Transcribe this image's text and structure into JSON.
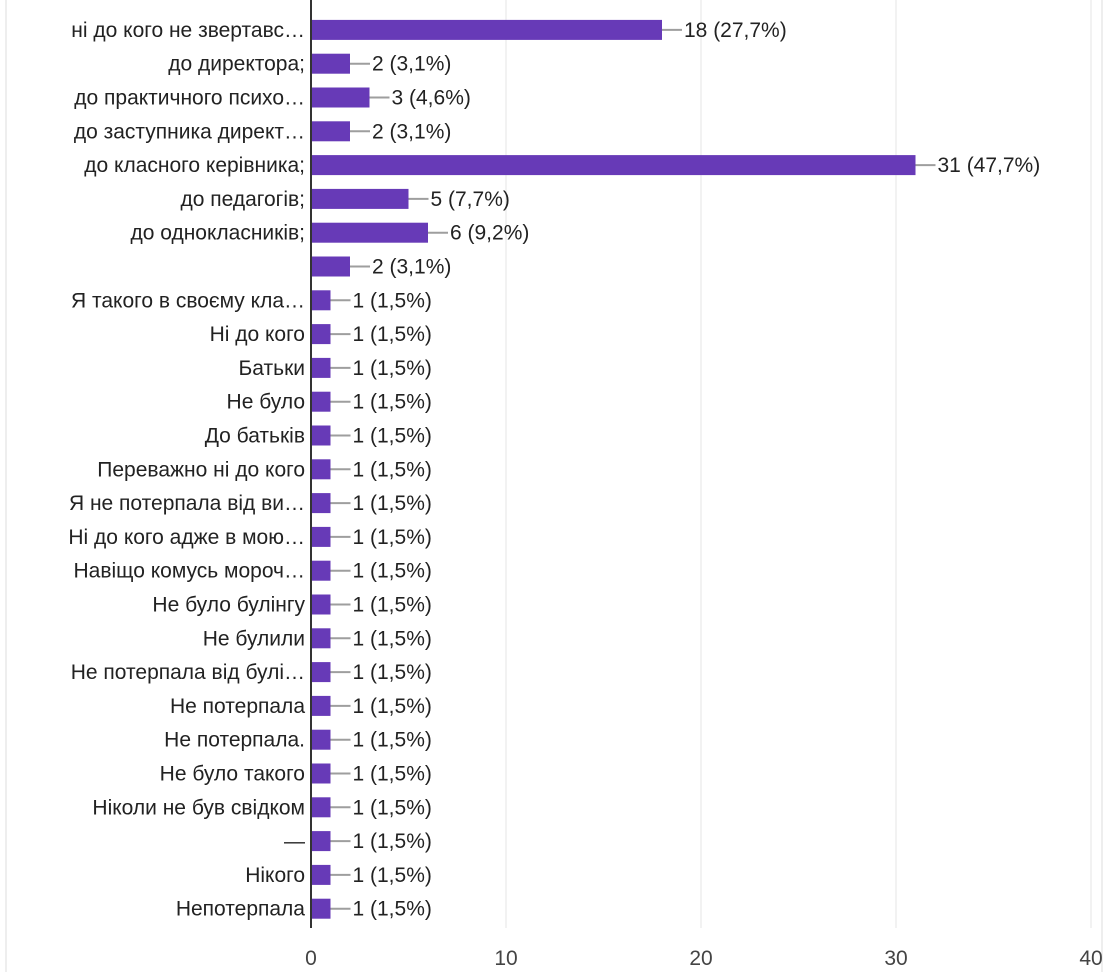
{
  "chart_data": {
    "type": "bar",
    "orientation": "horizontal",
    "categories": [
      "ні до кого не звертавс…",
      "до директора;",
      "до практичного психо…",
      "до заступника директ…",
      "до класного керівника;",
      "до педагогів;",
      "до однокласників;",
      "",
      "Я такого в своєму кла…",
      "Ні до кого",
      "Батьки",
      "Не було",
      "До батьків",
      "Переважно ні до кого",
      "Я не потерпала від ви…",
      "Ні до кого адже в мою…",
      "Навіщо комусь мороч…",
      "Не було булінгу",
      "Не булили",
      "Не потерпала від булі…",
      "Не потерпала",
      "Не потерпала.",
      "Не було такого",
      "Ніколи не був свідком",
      "—",
      "Нікого",
      "Непотерпала"
    ],
    "values": [
      18,
      2,
      3,
      2,
      31,
      5,
      6,
      2,
      1,
      1,
      1,
      1,
      1,
      1,
      1,
      1,
      1,
      1,
      1,
      1,
      1,
      1,
      1,
      1,
      1,
      1,
      1
    ],
    "data_labels": [
      "18 (27,7%)",
      "2 (3,1%)",
      "3 (4,6%)",
      "2 (3,1%)",
      "31 (47,7%)",
      "5 (7,7%)",
      "6 (9,2%)",
      "2 (3,1%)",
      "1 (1,5%)",
      "1 (1,5%)",
      "1 (1,5%)",
      "1 (1,5%)",
      "1 (1,5%)",
      "1 (1,5%)",
      "1 (1,5%)",
      "1 (1,5%)",
      "1 (1,5%)",
      "1 (1,5%)",
      "1 (1,5%)",
      "1 (1,5%)",
      "1 (1,5%)",
      "1 (1,5%)",
      "1 (1,5%)",
      "1 (1,5%)",
      "1 (1,5%)",
      "1 (1,5%)",
      "1 (1,5%)"
    ],
    "x_ticks": [
      0,
      10,
      20,
      30,
      40
    ],
    "xlim": [
      0,
      40
    ],
    "grid": true,
    "legend": "none",
    "colors": {
      "bar": "#673AB7",
      "axis": "#333333",
      "grid": "#e6e6e6",
      "leader": "#9e9e9e"
    }
  }
}
